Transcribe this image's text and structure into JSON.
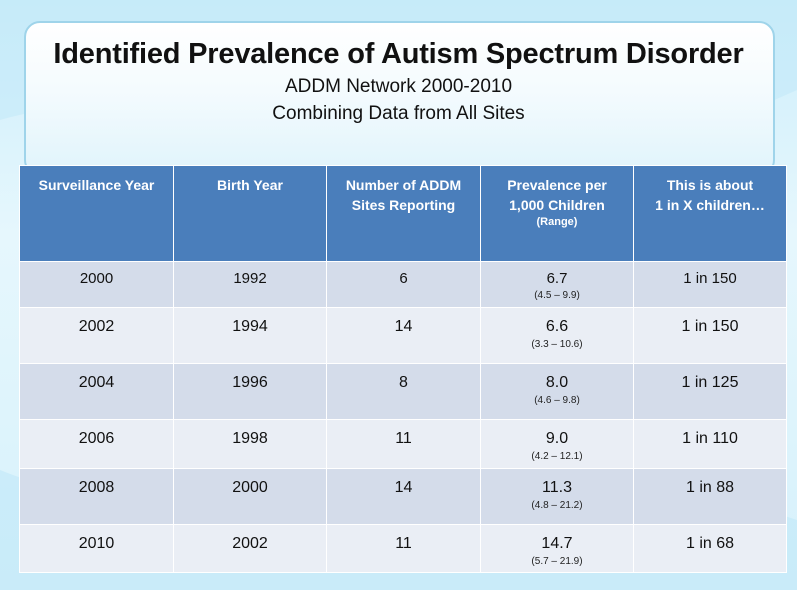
{
  "title": "Identified Prevalence of Autism Spectrum Disorder",
  "subtitle_line1": "ADDM Network 2000-2010",
  "subtitle_line2": "Combining Data from All Sites",
  "chart_data": {
    "type": "table",
    "title": "Identified Prevalence of Autism Spectrum Disorder",
    "columns": [
      {
        "line1": "Surveillance Year",
        "line2": "",
        "small": ""
      },
      {
        "line1": "Birth Year",
        "line2": "",
        "small": ""
      },
      {
        "line1": "Number of ADDM",
        "line2": "Sites Reporting",
        "small": ""
      },
      {
        "line1": "Prevalence per",
        "line2": "1,000 Children",
        "small": "(Range)"
      },
      {
        "line1": "This is about",
        "line2": "1 in X children…",
        "small": ""
      }
    ],
    "rows": [
      {
        "surveillance_year": "2000",
        "birth_year": "1992",
        "sites": "6",
        "prevalence": "6.7",
        "range": "(4.5 – 9.9)",
        "one_in_x": "1 in 150"
      },
      {
        "surveillance_year": "2002",
        "birth_year": "1994",
        "sites": "14",
        "prevalence": "6.6",
        "range": "(3.3 – 10.6)",
        "one_in_x": "1 in 150"
      },
      {
        "surveillance_year": "2004",
        "birth_year": "1996",
        "sites": "8",
        "prevalence": "8.0",
        "range": "(4.6 – 9.8)",
        "one_in_x": "1 in 125"
      },
      {
        "surveillance_year": "2006",
        "birth_year": "1998",
        "sites": "11",
        "prevalence": "9.0",
        "range": "(4.2 – 12.1)",
        "one_in_x": "1 in 110"
      },
      {
        "surveillance_year": "2008",
        "birth_year": "2000",
        "sites": "14",
        "prevalence": "11.3",
        "range": "(4.8 – 21.2)",
        "one_in_x": "1 in 88"
      },
      {
        "surveillance_year": "2010",
        "birth_year": "2002",
        "sites": "11",
        "prevalence": "14.7",
        "range": "(5.7 – 21.9)",
        "one_in_x": "1 in 68"
      }
    ]
  },
  "colors": {
    "header_bg": "#4a7ebb",
    "row_odd": "#d4dcea",
    "row_even": "#eaeef5",
    "panel_border": "#9fd4ea"
  }
}
